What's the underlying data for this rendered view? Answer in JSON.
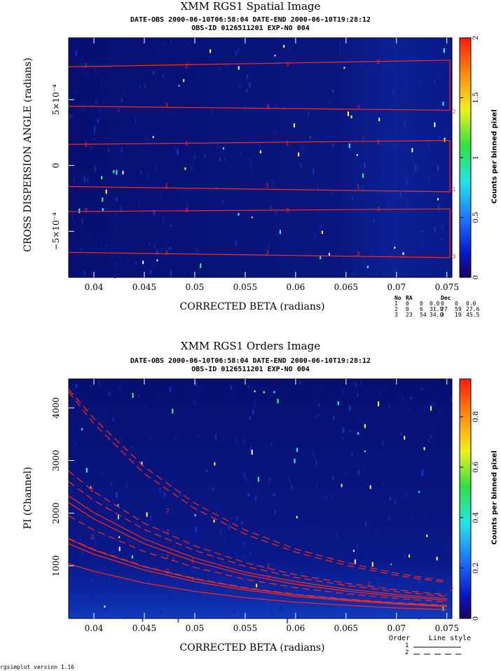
{
  "colors": {
    "curve": "#ff2a1a",
    "background": "#0a1580"
  },
  "footer": "rgsimplot version 1.16",
  "chart_data": [
    {
      "type": "heatmap",
      "title": "XMM RGS1 Spatial Image",
      "subtitle1": "DATE-OBS 2000-06-10T06:58:04    DATE-END 2000-06-10T19:28:12",
      "subtitle2": "OBS-ID 0126511201 EXP-NO 004",
      "xlabel": "CORRECTED BETA (radians)",
      "ylabel": "CROSS DISPERSION ANGLE (radians)",
      "colorbar_label": "Counts per binned pixel",
      "xlim": [
        0.0375,
        0.0755
      ],
      "ylim": [
        -0.00085,
        0.00097
      ],
      "xticks": [
        0.04,
        0.045,
        0.05,
        0.055,
        0.06,
        0.065,
        0.07,
        0.075
      ],
      "xtick_labels": [
        "0.04",
        "0.045",
        "0.05",
        "0.055",
        "0.06",
        "0.065",
        "0.07",
        "0.075"
      ],
      "yticks": [
        -0.0005,
        0,
        0.0005
      ],
      "ytick_labels": [
        "−5×10⁻⁴",
        "0",
        "5×10⁻⁴"
      ],
      "colorbar_ticks": [
        0,
        0.5,
        1,
        1.5,
        2
      ],
      "colorbar_tick_labels": [
        "0",
        "0.5",
        "1",
        "1.5",
        "2"
      ],
      "colorbar_range": [
        0,
        2
      ],
      "regions": [
        {
          "label": "2",
          "x": [
            0.0375,
            0.0753
          ],
          "y": [
            0.00075,
            0.0008
          ]
        },
        {
          "label": "2",
          "x": [
            0.0375,
            0.0753
          ],
          "y": [
            0.00045,
            0.00042
          ]
        },
        {
          "label": "1",
          "x": [
            0.0375,
            0.0753
          ],
          "y": [
            0.00016,
            0.00019
          ]
        },
        {
          "label": "1",
          "x": [
            0.0375,
            0.0753
          ],
          "y": [
            -0.00016,
            -0.0002
          ]
        },
        {
          "label": "3",
          "x": [
            0.0375,
            0.0753
          ],
          "y": [
            -0.00035,
            -0.00033
          ]
        },
        {
          "label": "3",
          "x": [
            0.0375,
            0.0753
          ],
          "y": [
            -0.00066,
            -0.0007
          ]
        }
      ],
      "region_labels": [
        {
          "t": "2",
          "x": 0.0392,
          "y": 0.00076
        },
        {
          "t": "2",
          "x": 0.0492,
          "y": 0.00076
        },
        {
          "t": "3",
          "x": 0.0592,
          "y": 0.00077
        },
        {
          "t": "2",
          "x": 0.0682,
          "y": 0.00079
        },
        {
          "t": "3",
          "x": 0.0472,
          "y": 0.00046
        },
        {
          "t": "3",
          "x": 0.0572,
          "y": 0.00045
        },
        {
          "t": "2",
          "x": 0.0662,
          "y": 0.00044
        },
        {
          "t": "2",
          "x": 0.0757,
          "y": 0.00041
        },
        {
          "t": "1",
          "x": 0.0392,
          "y": 0.00016
        },
        {
          "t": "1",
          "x": 0.0492,
          "y": 0.00017
        },
        {
          "t": "1",
          "x": 0.0592,
          "y": 0.00017
        },
        {
          "t": "1",
          "x": 0.0682,
          "y": 0.00018
        },
        {
          "t": "1",
          "x": 0.0472,
          "y": -0.00015
        },
        {
          "t": "1",
          "x": 0.0572,
          "y": -0.00015
        },
        {
          "t": "1",
          "x": 0.0662,
          "y": -0.00016
        },
        {
          "t": "1",
          "x": 0.0757,
          "y": -0.00018
        },
        {
          "t": "3",
          "x": 0.0392,
          "y": -0.00034
        },
        {
          "t": "3",
          "x": 0.0492,
          "y": -0.00034
        },
        {
          "t": "3",
          "x": 0.0592,
          "y": -0.00034
        },
        {
          "t": "3",
          "x": 0.0682,
          "y": -0.00033
        },
        {
          "t": "3",
          "x": 0.0472,
          "y": -0.00066
        },
        {
          "t": "3",
          "x": 0.0572,
          "y": -0.00066
        },
        {
          "t": "3",
          "x": 0.0662,
          "y": -0.00067
        },
        {
          "t": "3",
          "x": 0.0757,
          "y": -0.00069
        }
      ],
      "table": {
        "headers": [
          "No",
          "RA",
          "",
          "",
          "Dec",
          "",
          ""
        ],
        "rows": [
          [
            "1",
            "0",
            "0",
            "0.0",
            "0",
            "0",
            "0.0"
          ],
          [
            "2",
            "0",
            "6",
            "31.9",
            "27",
            "59",
            "27.6"
          ],
          [
            "3",
            "23",
            "54",
            "34.0",
            "3",
            "19",
            "45.5"
          ]
        ]
      }
    },
    {
      "type": "heatmap",
      "title": "XMM RGS1 Orders Image",
      "subtitle1": "DATE-OBS 2000-06-10T06:58:04    DATE-END 2000-06-10T19:28:12",
      "subtitle2": "OBS-ID 0126511201 EXP-NO 004",
      "xlabel": "CORRECTED BETA (radians)",
      "ylabel": "PI (Channel)",
      "colorbar_label": "Counts per binned pixel",
      "xlim": [
        0.0375,
        0.0755
      ],
      "ylim": [
        0,
        4550
      ],
      "xticks": [
        0.04,
        0.045,
        0.05,
        0.055,
        0.06,
        0.065,
        0.07,
        0.075
      ],
      "xtick_labels": [
        "0.04",
        "0.045",
        "0.05",
        "0.055",
        "0.06",
        "0.065",
        "0.07",
        "0.075"
      ],
      "yticks": [
        1000,
        2000,
        3000,
        4000
      ],
      "ytick_labels": [
        "1000",
        "2000",
        "3000",
        "4000"
      ],
      "colorbar_ticks": [
        0,
        0.2,
        0.4,
        0.6,
        0.8
      ],
      "colorbar_tick_labels": [
        "0",
        "0.2",
        "0.4",
        "0.6",
        "0.8"
      ],
      "colorbar_range": [
        0,
        0.95
      ],
      "legend": {
        "header": [
          "Order",
          "Line style"
        ],
        "entries": [
          {
            "order": "1",
            "style": "solid"
          },
          {
            "order": "2",
            "style": "dashed"
          }
        ]
      },
      "curve_labels": [
        {
          "t": "1",
          "x": 0.0398,
          "y": 2450
        },
        {
          "t": "2",
          "x": 0.0473,
          "y": 2050
        },
        {
          "t": "2",
          "x": 0.0473,
          "y": 1650
        },
        {
          "t": "2",
          "x": 0.0398,
          "y": 1550
        },
        {
          "t": "2",
          "x": 0.0473,
          "y": 1180
        },
        {
          "t": "2",
          "x": 0.0498,
          "y": 1100
        },
        {
          "t": "2",
          "x": 0.0573,
          "y": 1000
        },
        {
          "t": "2",
          "x": 0.0498,
          "y": 750
        },
        {
          "t": "2",
          "x": 0.0473,
          "y": 900
        },
        {
          "t": "2",
          "x": 0.0573,
          "y": 780
        },
        {
          "t": "2",
          "x": 0.0673,
          "y": 660
        },
        {
          "t": "2",
          "x": 0.0755,
          "y": 560
        }
      ],
      "series": [
        {
          "order": "1",
          "style": "solid",
          "x": [
            0.0375,
            0.04,
            0.045,
            0.05,
            0.055,
            0.06,
            0.065,
            0.07,
            0.075
          ],
          "y": [
            2330,
            2010,
            1510,
            1150,
            880,
            700,
            560,
            455,
            375
          ]
        },
        {
          "order": "1",
          "style": "solid",
          "x": [
            0.0375,
            0.04,
            0.045,
            0.05,
            0.055,
            0.06,
            0.065,
            0.07,
            0.075
          ],
          "y": [
            2200,
            1890,
            1420,
            1080,
            830,
            650,
            520,
            420,
            345
          ]
        },
        {
          "order": "1",
          "style": "solid",
          "x": [
            0.0375,
            0.04,
            0.045,
            0.05,
            0.055,
            0.06,
            0.065,
            0.07,
            0.075
          ],
          "y": [
            1510,
            1300,
            980,
            750,
            575,
            450,
            360,
            290,
            240
          ]
        },
        {
          "order": "1",
          "style": "solid",
          "x": [
            0.0375,
            0.04,
            0.045,
            0.05,
            0.055,
            0.06,
            0.065,
            0.07,
            0.075
          ],
          "y": [
            1420,
            1220,
            920,
            700,
            540,
            420,
            340,
            275,
            225
          ]
        },
        {
          "order": "1",
          "style": "solid",
          "x": [
            0.0375,
            0.04,
            0.045,
            0.05,
            0.055,
            0.06,
            0.065,
            0.07,
            0.075
          ],
          "y": [
            1040,
            895,
            675,
            515,
            395,
            310,
            250,
            200,
            165
          ]
        },
        {
          "order": "2",
          "style": "dashed",
          "x": [
            0.0375,
            0.04,
            0.045,
            0.05,
            0.055,
            0.06,
            0.065,
            0.07,
            0.075
          ],
          "y": [
            4350,
            3800,
            2880,
            2190,
            1680,
            1320,
            1060,
            860,
            710
          ]
        },
        {
          "order": "2",
          "style": "dashed",
          "x": [
            0.0375,
            0.04,
            0.045,
            0.05,
            0.055,
            0.06,
            0.065,
            0.07,
            0.075
          ],
          "y": [
            4300,
            3700,
            2750,
            2090,
            1600,
            1260,
            1010,
            820,
            680
          ]
        },
        {
          "order": "2",
          "style": "dashed",
          "x": [
            0.0375,
            0.04,
            0.045,
            0.05,
            0.055,
            0.06,
            0.065,
            0.07,
            0.075
          ],
          "y": [
            2800,
            2410,
            1810,
            1380,
            1060,
            830,
            670,
            545,
            450
          ]
        },
        {
          "order": "2",
          "style": "dashed",
          "x": [
            0.0375,
            0.04,
            0.045,
            0.05,
            0.055,
            0.06,
            0.065,
            0.07,
            0.075
          ],
          "y": [
            2600,
            2240,
            1690,
            1290,
            990,
            780,
            630,
            510,
            420
          ]
        },
        {
          "order": "2",
          "style": "dashed",
          "x": [
            0.0375,
            0.04,
            0.045,
            0.05,
            0.055,
            0.06,
            0.065,
            0.07,
            0.075
          ],
          "y": [
            1950,
            1680,
            1270,
            970,
            745,
            585,
            470,
            380,
            315
          ]
        },
        {
          "order": "2",
          "style": "dashed",
          "x": [
            0.0375,
            0.04,
            0.045,
            0.05,
            0.055,
            0.06,
            0.065,
            0.07,
            0.075
          ],
          "y": [
            1520,
            1310,
            990,
            760,
            585,
            460,
            370,
            300,
            250
          ]
        }
      ]
    }
  ]
}
